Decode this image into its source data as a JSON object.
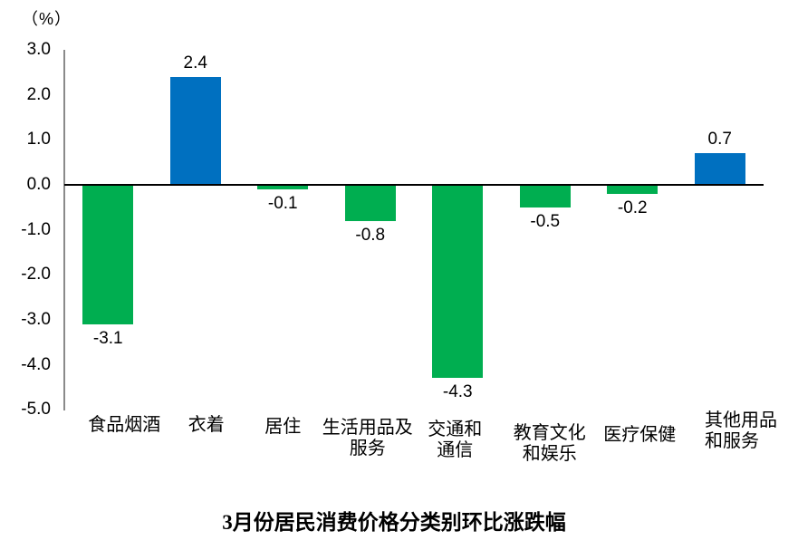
{
  "chart_data": {
    "type": "bar",
    "title": "3月份居民消费价格分类别环比涨跌幅",
    "unit_label": "（%）",
    "categories": [
      "食品烟酒",
      "衣着",
      "居住",
      "生活用品及\n服务",
      "交通和\n通信",
      "教育文化\n和娱乐",
      "医疗保健",
      "其他用品\n和服务"
    ],
    "values": [
      -3.1,
      2.4,
      -0.1,
      -0.8,
      -4.3,
      -0.5,
      -0.2,
      0.7
    ],
    "bar_labels": [
      "-3.1",
      "2.4",
      "-0.1",
      "-0.8",
      "-4.3",
      "-0.5",
      "-0.2",
      "0.7"
    ],
    "ytick_values": [
      3.0,
      2.0,
      1.0,
      0.0,
      -1.0,
      -2.0,
      -3.0,
      -4.0,
      -5.0
    ],
    "ytick_labels": [
      "3.0",
      "2.0",
      "1.0",
      "0.0",
      "-1.0",
      "-2.0",
      "-3.0",
      "-4.0",
      "-5.0"
    ],
    "ylim": [
      -5.0,
      3.0
    ],
    "grid": false,
    "legend": "none",
    "colors": {
      "positive_bar": "#0070C0",
      "negative_bar": "#00AE50",
      "axis_line": "#8A8A8A",
      "zero_line": "#000000",
      "text": "#000000"
    }
  }
}
